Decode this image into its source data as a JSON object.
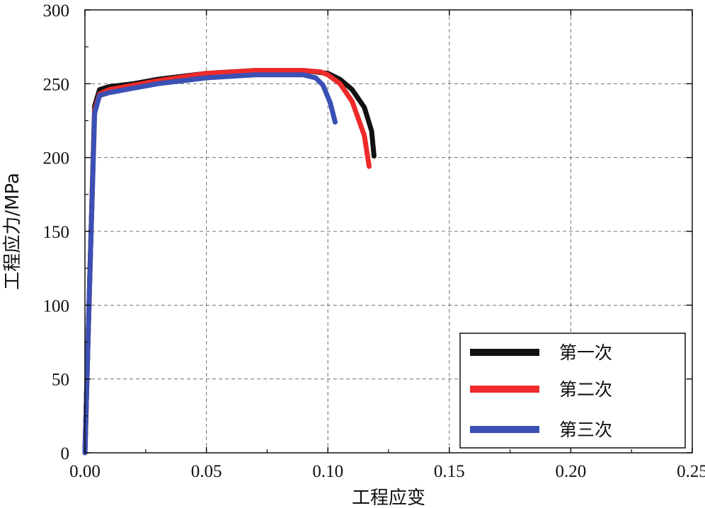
{
  "chart_data": {
    "type": "line",
    "title": "",
    "xlabel": "工程应变",
    "ylabel": "工程应力/MPa",
    "xlim": [
      0,
      0.25
    ],
    "ylim": [
      0,
      300
    ],
    "x_ticks": [
      "0.00",
      "0.05",
      "0.10",
      "0.15",
      "0.20",
      "0.25"
    ],
    "x_tick_values": [
      0,
      0.05,
      0.1,
      0.15,
      0.2,
      0.25
    ],
    "y_ticks": [
      "0",
      "50",
      "100",
      "150",
      "200",
      "250",
      "300"
    ],
    "y_tick_values": [
      0,
      50,
      100,
      150,
      200,
      250,
      300
    ],
    "grid": true,
    "legend_position": "bottom-right",
    "series": [
      {
        "name": "第一次",
        "color": "#111111",
        "x": [
          0,
          0.002,
          0.004,
          0.006,
          0.01,
          0.02,
          0.03,
          0.05,
          0.07,
          0.09,
          0.1,
          0.105,
          0.11,
          0.115,
          0.118,
          0.119
        ],
        "y": [
          0,
          120,
          235,
          246,
          248,
          250,
          253,
          257,
          259,
          259,
          257,
          253,
          246,
          234,
          218,
          201
        ]
      },
      {
        "name": "第二次",
        "color": "#ee2a2a",
        "x": [
          0,
          0.002,
          0.004,
          0.006,
          0.01,
          0.02,
          0.03,
          0.05,
          0.07,
          0.09,
          0.097,
          0.1,
          0.105,
          0.11,
          0.115,
          0.117
        ],
        "y": [
          0,
          120,
          232,
          243,
          246,
          249,
          252,
          257,
          259,
          259,
          258,
          256,
          250,
          238,
          215,
          194
        ]
      },
      {
        "name": "第三次",
        "color": "#3a50b4",
        "x": [
          0,
          0.002,
          0.004,
          0.006,
          0.01,
          0.02,
          0.03,
          0.05,
          0.07,
          0.09,
          0.095,
          0.098,
          0.101,
          0.103
        ],
        "y": [
          0,
          120,
          230,
          242,
          244,
          247,
          250,
          254,
          256,
          256,
          254,
          249,
          237,
          224
        ]
      }
    ]
  }
}
